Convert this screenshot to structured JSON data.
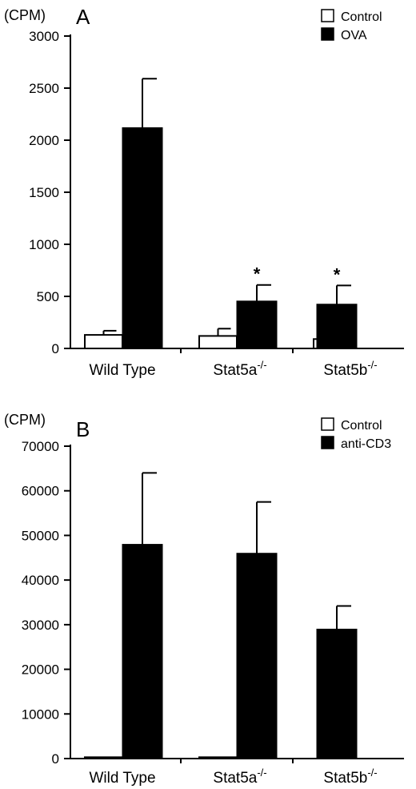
{
  "chart_data": [
    {
      "type": "bar",
      "panel_label": "A",
      "ylabel": "(CPM)",
      "ylim": [
        0,
        3000
      ],
      "yticks": [
        0,
        500,
        1000,
        1500,
        2000,
        2500,
        3000
      ],
      "categories": [
        "Wild Type",
        "Stat5a",
        "Stat5b"
      ],
      "category_superscript": [
        "",
        "-/-",
        "-/-"
      ],
      "series": [
        {
          "name": "Control",
          "color": "#ffffff",
          "values": [
            130,
            120,
            90
          ],
          "errors": [
            40,
            70,
            0
          ]
        },
        {
          "name": "OVA",
          "color": "#000000",
          "values": [
            2120,
            455,
            425
          ],
          "errors": [
            470,
            155,
            180
          ]
        }
      ],
      "annotations": [
        "",
        "*",
        "*"
      ],
      "legend": "top-right",
      "grid": false
    },
    {
      "type": "bar",
      "panel_label": "B",
      "ylabel": "(CPM)",
      "ylim": [
        0,
        70000
      ],
      "yticks": [
        0,
        10000,
        20000,
        30000,
        40000,
        50000,
        60000,
        70000
      ],
      "categories": [
        "Wild Type",
        "Stat5a",
        "Stat5b"
      ],
      "category_superscript": [
        "",
        "-/-",
        "-/-"
      ],
      "series": [
        {
          "name": "Control",
          "color": "#ffffff",
          "values": [
            300,
            300,
            0
          ],
          "errors": [
            0,
            0,
            0
          ]
        },
        {
          "name": "anti-CD3",
          "color": "#000000",
          "values": [
            48000,
            46000,
            29000
          ],
          "errors": [
            16000,
            11500,
            5200
          ]
        }
      ],
      "annotations": [
        "",
        "",
        ""
      ],
      "legend": "top-right",
      "grid": false
    }
  ]
}
